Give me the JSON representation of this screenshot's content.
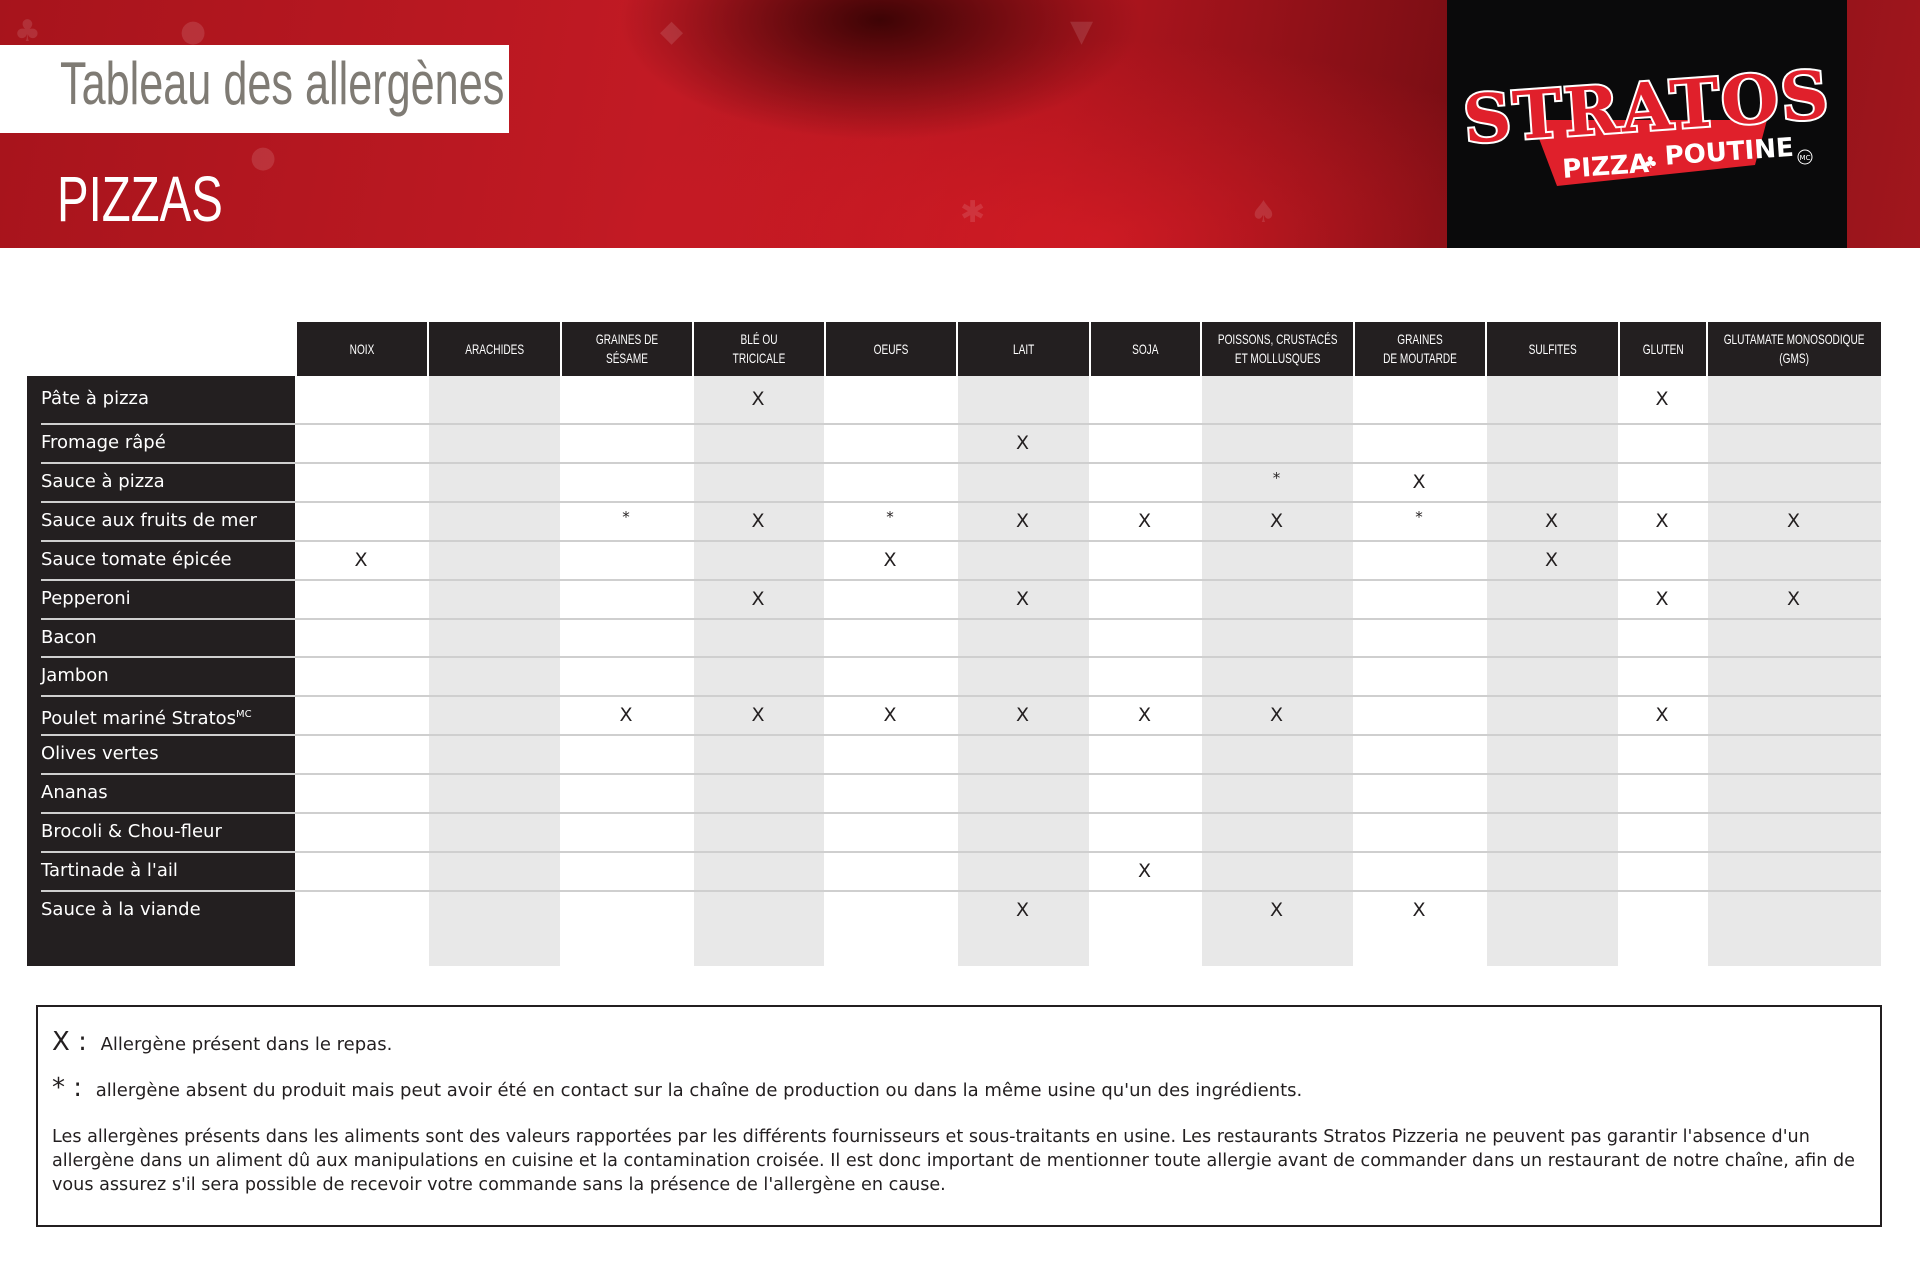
{
  "header": {
    "title": "Tableau des allergènes",
    "subtitle": "PIZZAS",
    "logo": {
      "brand": "STRATOS",
      "tagline_left": "PIZZA",
      "tagline_right": "POUTINE",
      "trademark": "MC"
    },
    "colors": {
      "red": "#c21a24",
      "dark": "#0a0a0b",
      "title_gray": "#7f7b74"
    }
  },
  "table": {
    "columns": [
      "NOIX",
      "ARACHIDES",
      "GRAINES DE\nSÉSAME",
      "BLÉ OU\nTRICICALE",
      "OEUFS",
      "LAIT",
      "SOJA",
      "POISSONS, CRUSTACÉS\nET MOLLUSQUES",
      "GRAINES\nDE MOUTARDE",
      "SULFITES",
      "GLUTEN",
      "GLUTAMATE MONOSODIQUE\n(GMS)"
    ],
    "rows": [
      {
        "label": "Pâte à pizza",
        "values": [
          "",
          "",
          "",
          "X",
          "",
          "",
          "",
          "",
          "",
          "",
          "X",
          ""
        ]
      },
      {
        "label": "Fromage râpé",
        "values": [
          "",
          "",
          "",
          "",
          "",
          "X",
          "",
          "",
          "",
          "",
          "",
          ""
        ]
      },
      {
        "label": "Sauce à pizza",
        "values": [
          "",
          "",
          "",
          "",
          "",
          "",
          "",
          "*",
          "X",
          "",
          "",
          ""
        ]
      },
      {
        "label": "Sauce aux fruits de mer",
        "values": [
          "",
          "",
          "*",
          "X",
          "*",
          "X",
          "X",
          "X",
          "*",
          "X",
          "X",
          "X"
        ]
      },
      {
        "label": "Sauce tomate épicée",
        "values": [
          "X",
          "",
          "",
          "",
          "X",
          "",
          "",
          "",
          "",
          "X",
          "",
          ""
        ]
      },
      {
        "label": "Pepperoni",
        "values": [
          "",
          "",
          "",
          "X",
          "",
          "X",
          "",
          "",
          "",
          "",
          "X",
          "X"
        ]
      },
      {
        "label": "Bacon",
        "values": [
          "",
          "",
          "",
          "",
          "",
          "",
          "",
          "",
          "",
          "",
          "",
          ""
        ]
      },
      {
        "label": "Jambon",
        "values": [
          "",
          "",
          "",
          "",
          "",
          "",
          "",
          "",
          "",
          "",
          "",
          ""
        ]
      },
      {
        "label": "Poulet mariné Stratos",
        "sup": "MC",
        "values": [
          "",
          "",
          "X",
          "X",
          "X",
          "X",
          "X",
          "X",
          "",
          "",
          "X",
          ""
        ]
      },
      {
        "label": "Olives vertes",
        "values": [
          "",
          "",
          "",
          "",
          "",
          "",
          "",
          "",
          "",
          "",
          "",
          ""
        ]
      },
      {
        "label": "Ananas",
        "values": [
          "",
          "",
          "",
          "",
          "",
          "",
          "",
          "",
          "",
          "",
          "",
          ""
        ]
      },
      {
        "label": "Brocoli & Chou-fleur",
        "values": [
          "",
          "",
          "",
          "",
          "",
          "",
          "",
          "",
          "",
          "",
          "",
          ""
        ]
      },
      {
        "label": "Tartinade à l'ail",
        "values": [
          "",
          "",
          "",
          "",
          "",
          "",
          "X",
          "",
          "",
          "",
          "",
          ""
        ]
      },
      {
        "label": "Sauce à la viande",
        "values": [
          "",
          "",
          "",
          "",
          "",
          "X",
          "",
          "X",
          "X",
          "",
          "",
          ""
        ]
      }
    ],
    "colors": {
      "header_bg": "#231f20",
      "shaded_column": "#e8e8e8"
    }
  },
  "legend": {
    "x_symbol": "X :",
    "x_text": "Allergène présent dans le repas.",
    "star_symbol": "* :",
    "star_text": "allergène absent du produit mais peut avoir été en contact sur la chaîne de production ou dans la même usine qu'un des ingrédients.",
    "disclaimer": "Les allergènes présents dans les aliments sont des valeurs rapportées par les différents fournisseurs et sous-traitants en usine.  Les restaurants Stratos Pizzeria ne peuvent pas garantir l'absence d'un allergène dans un aliment dû aux manipulations en cuisine et la contamination croisée.  Il est donc important de mentionner toute allergie avant de commander dans un restaurant de notre chaîne, afin de vous assurez s'il sera possible de recevoir votre commande sans la présence de l'allergène en cause."
  }
}
